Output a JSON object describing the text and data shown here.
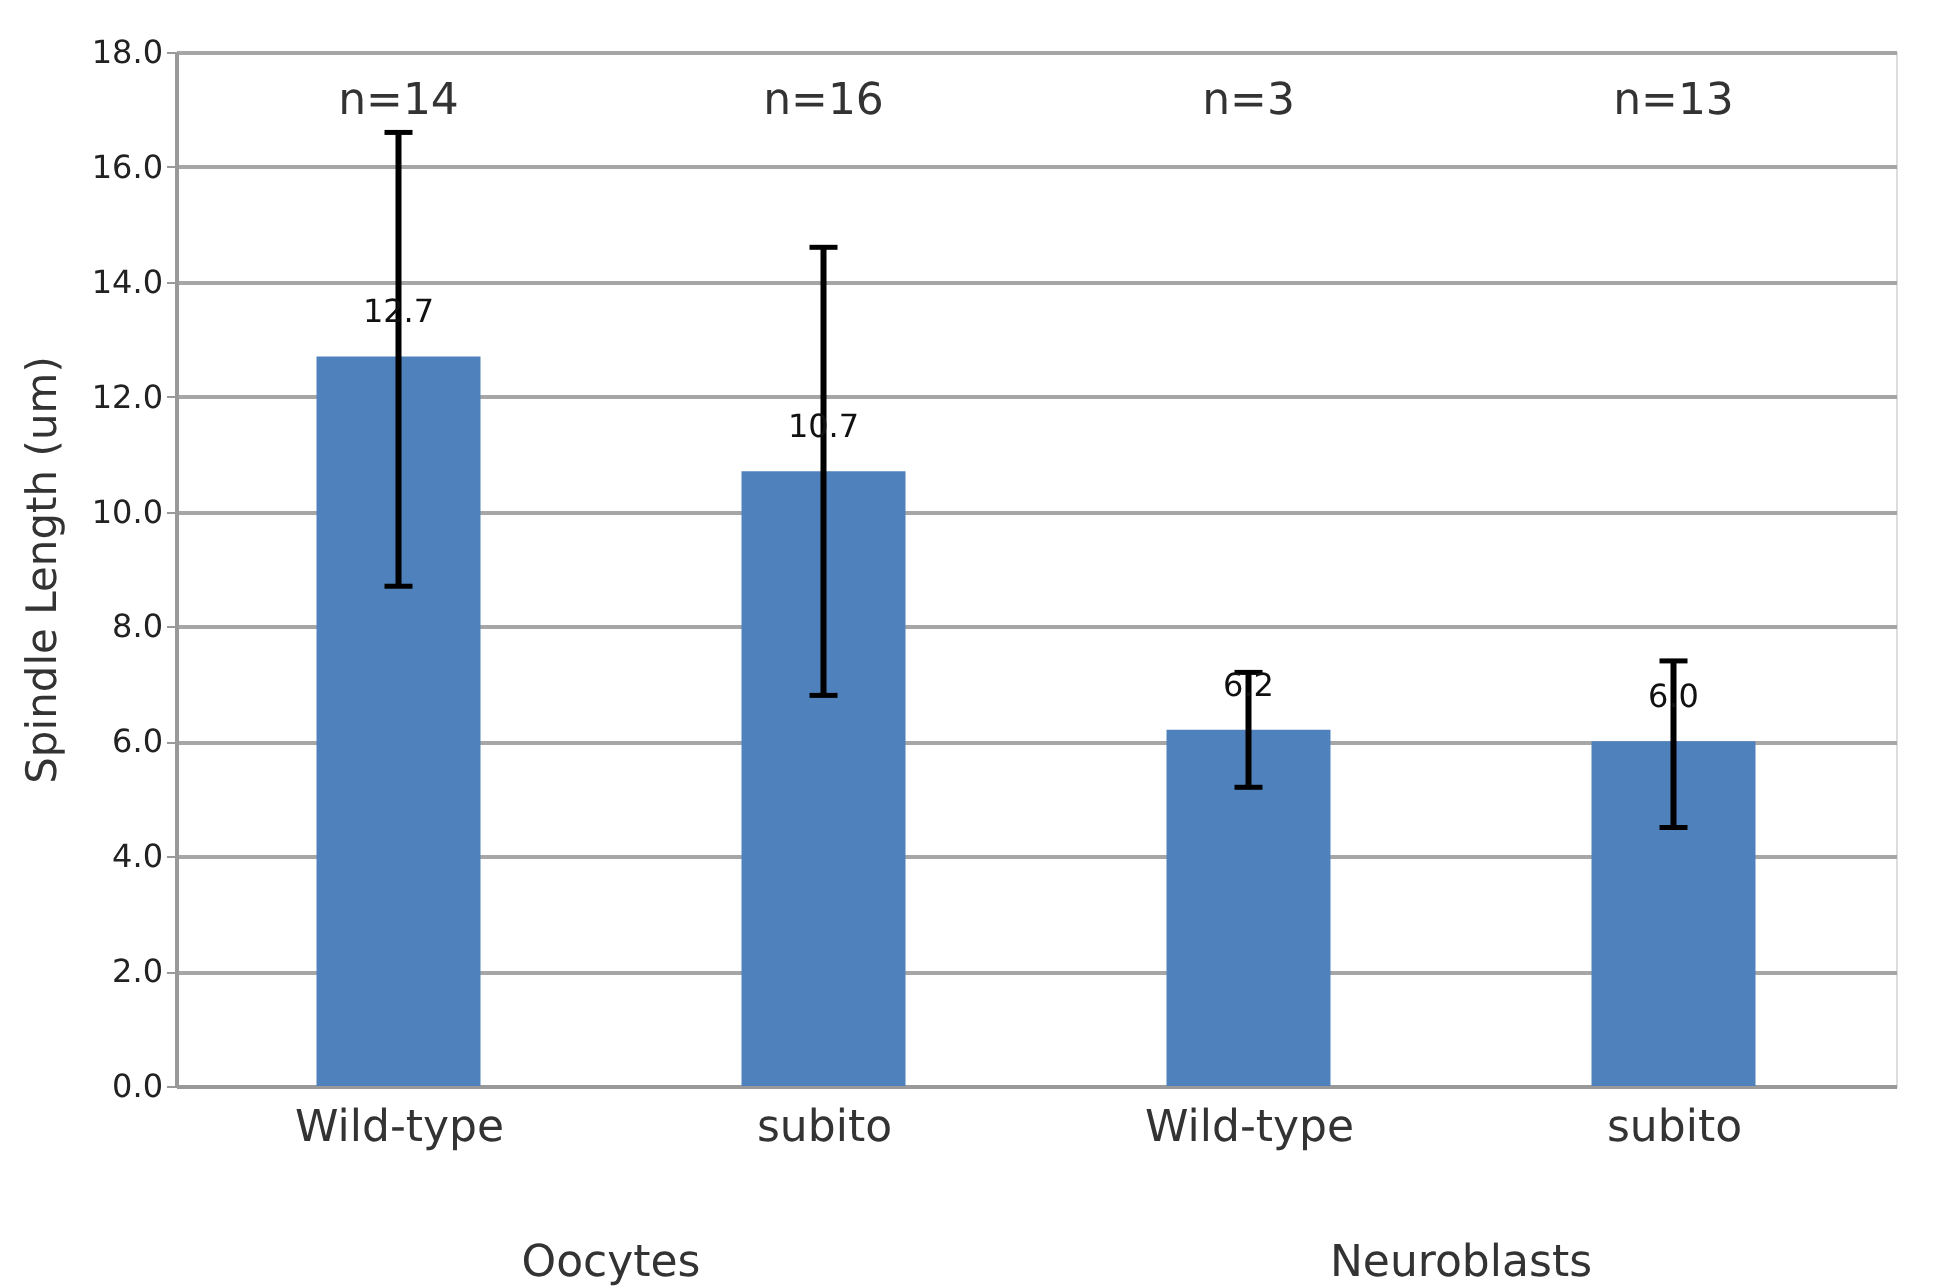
{
  "chart_data": {
    "type": "bar",
    "ylabel": "Spindle Length (um)",
    "categories": [
      "Wild-type",
      "subito",
      "Wild-type",
      "subito"
    ],
    "series": [
      {
        "color": "#4f81bd",
        "values": [
          12.7,
          10.7,
          6.2,
          6.0
        ],
        "value_labels": [
          "12.7",
          "10.7",
          "6.2",
          "6.0"
        ],
        "errors": [
          [
            8.7,
            16.6
          ],
          [
            6.8,
            14.6
          ],
          [
            5.2,
            7.2
          ],
          [
            4.5,
            7.4
          ]
        ]
      }
    ],
    "ylim": [
      0,
      18
    ],
    "yticks": [
      {
        "value": 0,
        "label": "0.0"
      },
      {
        "value": 2,
        "label": "2.0"
      },
      {
        "value": 4,
        "label": "4.0"
      },
      {
        "value": 6,
        "label": "6.0"
      },
      {
        "value": 8,
        "label": "8.0"
      },
      {
        "value": 10,
        "label": "10.0"
      },
      {
        "value": 12,
        "label": "12.0"
      },
      {
        "value": 14,
        "label": "14.0"
      },
      {
        "value": 16,
        "label": "16.0"
      },
      {
        "value": 18,
        "label": "18.0"
      }
    ],
    "grid": "y",
    "annotations": [
      "n=14",
      "n=16",
      "n=3",
      "n=13",
      "Oocytes",
      "Neuroblasts"
    ]
  }
}
